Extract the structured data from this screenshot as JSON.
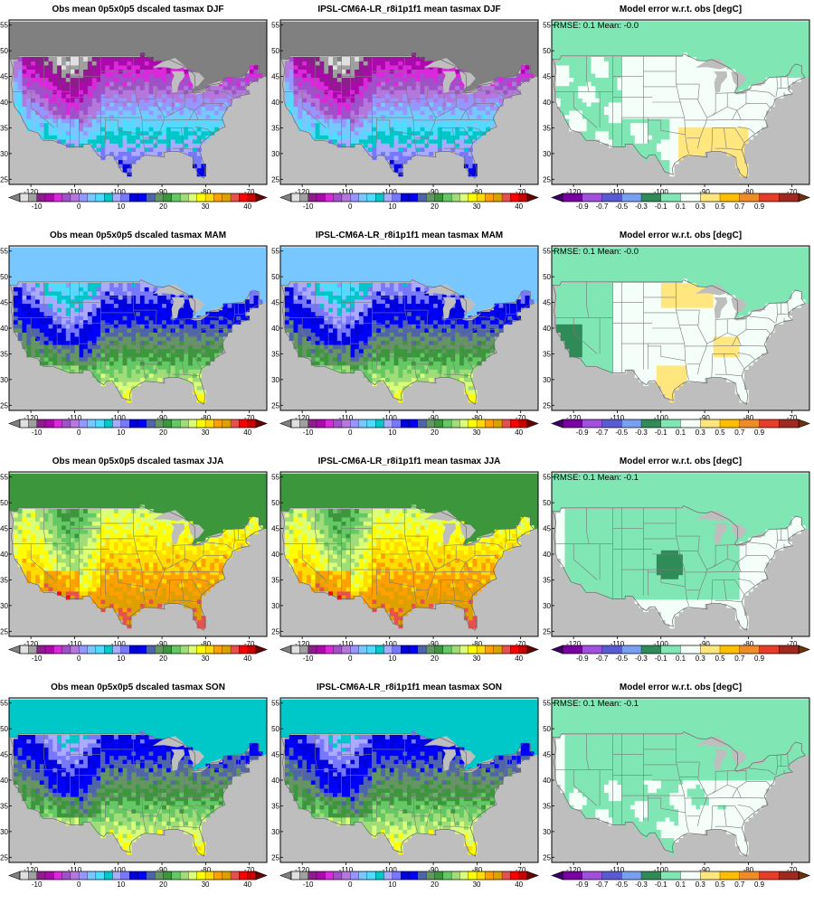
{
  "figure": {
    "rows": [
      {
        "season": "DJF",
        "obs_title": "Obs mean 0p5x0p5 dscaled tasmax DJF",
        "model_title": "IPSL-CM6A-LR_r8i1p1f1 mean tasmax DJF",
        "error_title": "Model error w.r.t. obs [degC]",
        "rmse_label": "RMSE:",
        "rmse": "0.1",
        "mean_label": "Mean:",
        "mean": "-0.0"
      },
      {
        "season": "MAM",
        "obs_title": "Obs mean 0p5x0p5 dscaled tasmax MAM",
        "model_title": "IPSL-CM6A-LR_r8i1p1f1 mean tasmax MAM",
        "error_title": "Model error w.r.t. obs [degC]",
        "rmse_label": "RMSE:",
        "rmse": "0.1",
        "mean_label": "Mean:",
        "mean": "-0.0"
      },
      {
        "season": "JJA",
        "obs_title": "Obs mean 0p5x0p5 dscaled tasmax JJA",
        "model_title": "IPSL-CM6A-LR_r8i1p1f1 mean tasmax JJA",
        "error_title": "Model error w.r.t. obs [degC]",
        "rmse_label": "RMSE:",
        "rmse": "0.1",
        "mean_label": "Mean:",
        "mean": "-0.1"
      },
      {
        "season": "SON",
        "obs_title": "Obs mean 0p5x0p5 dscaled tasmax SON",
        "model_title": "IPSL-CM6A-LR_r8i1p1f1 mean tasmax SON",
        "error_title": "Model error w.r.t. obs [degC]",
        "rmse_label": "RMSE:",
        "rmse": "0.1",
        "mean_label": "Mean:",
        "mean": "-0.1"
      }
    ],
    "map_axes": {
      "lon_range": [
        -125,
        -66
      ],
      "lat_range": [
        24,
        56
      ],
      "lon_ticks": [
        "-120",
        "-110",
        "-100",
        "-90",
        "-80",
        "-70"
      ],
      "lon_tick_values": [
        -120,
        -110,
        -100,
        -90,
        -80,
        -70
      ],
      "lat_ticks": [
        "25",
        "30",
        "35",
        "40",
        "45",
        "50",
        "55"
      ],
      "lat_tick_values": [
        25,
        30,
        35,
        40,
        45,
        50,
        55
      ]
    },
    "colors": {
      "ocean": "#bebebe",
      "land_missing": "#bebebe",
      "frame": "#000000"
    },
    "temp_colorbar": {
      "tick_labels": [
        "-10",
        "0",
        "10",
        "20",
        "30",
        "40"
      ],
      "tick_values": [
        -10,
        0,
        10,
        20,
        30,
        40
      ],
      "bounds": [
        -14,
        42
      ],
      "colors": [
        "#e0e0e0",
        "#a0a0a0",
        "#8c1e8c",
        "#aa0aaa",
        "#dc28dc",
        "#a050c8",
        "#b478dc",
        "#9696ff",
        "#78c8ff",
        "#50dcff",
        "#00c8c8",
        "#aaaaff",
        "#7878ff",
        "#0000dc",
        "#0000ff",
        "#5064aa",
        "#649664",
        "#3c963c",
        "#64c864",
        "#a0dc78",
        "#dcff78",
        "#ffff00",
        "#ffdc00",
        "#ffa000",
        "#dca000",
        "#e85050",
        "#ff0000",
        "#c80000"
      ],
      "under_color": "#808080",
      "over_color": "#640000"
    },
    "error_colorbar": {
      "tick_labels": [
        "-0.9",
        "-0.7",
        "-0.5",
        "-0.3",
        "-0.1",
        "0.1",
        "0.3",
        "0.5",
        "0.7",
        "0.9"
      ],
      "tick_values": [
        -0.9,
        -0.7,
        -0.5,
        -0.3,
        -0.1,
        0.1,
        0.3,
        0.5,
        0.7,
        0.9
      ],
      "colors": [
        "#7800a0",
        "#a050dc",
        "#5a5ad2",
        "#78a0f0",
        "#2f8b57",
        "#7fe6b4",
        "#f5fffa",
        "#ffe67f",
        "#ffbe00",
        "#f08c28",
        "#e63c28",
        "#a0281e"
      ],
      "under_color": "#3c0064",
      "over_color": "#6e320a"
    },
    "error_field_colors": {
      "near_zero": "#f5fffa",
      "neg_small": "#7fe6b4",
      "neg_medium": "#2f8b57",
      "pos_small": "#ffe67f"
    }
  }
}
